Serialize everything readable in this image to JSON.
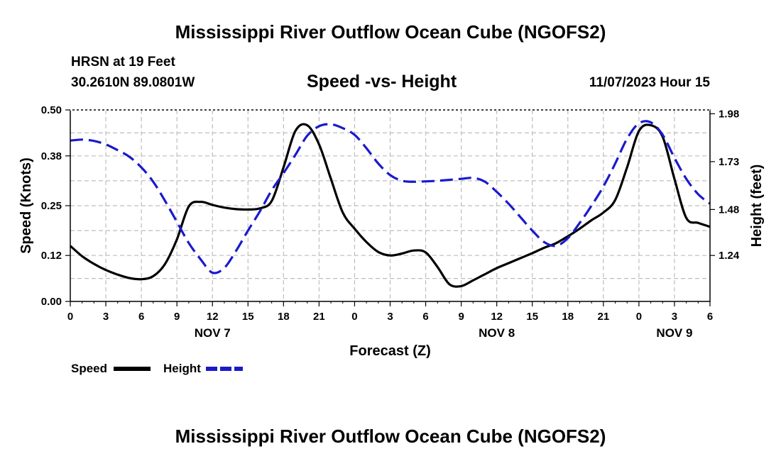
{
  "header": {
    "title": "Mississippi River Outflow Ocean Cube (NGOFS2)",
    "station": "HRSN at 19 Feet",
    "coords": "30.2610N  89.0801W",
    "subtitle": "Speed -vs- Height",
    "datetime": "11/07/2023 Hour 15"
  },
  "footer": {
    "title": "Mississippi River Outflow Ocean Cube (NGOFS2)"
  },
  "chart_data": {
    "type": "line",
    "title": "Speed -vs- Height",
    "xlabel": "Forecast (Z)",
    "ylabel": "Speed (Knots)",
    "y2label": "Height (feet)",
    "xlim": [
      0,
      54
    ],
    "ylim": [
      0,
      0.5
    ],
    "y2lim": [
      1.0,
      2.0
    ],
    "x_ticks": [
      0,
      3,
      6,
      9,
      12,
      15,
      18,
      21,
      24,
      27,
      30,
      33,
      36,
      39,
      42,
      45,
      48,
      51,
      54
    ],
    "x_tick_labels": [
      "0",
      "3",
      "6",
      "9",
      "12",
      "15",
      "18",
      "21",
      "0",
      "3",
      "6",
      "9",
      "12",
      "15",
      "18",
      "21",
      "0",
      "3",
      "6"
    ],
    "y_ticks": [
      0.0,
      0.12,
      0.25,
      0.38,
      0.5
    ],
    "y_tick_labels": [
      "0.00",
      "0.12",
      "0.25",
      "0.38",
      "0.50"
    ],
    "y2_ticks": [
      1.24,
      1.48,
      1.73,
      1.98
    ],
    "y2_tick_labels": [
      "1.24",
      "1.48",
      "1.73",
      "1.98"
    ],
    "day_labels": [
      {
        "x": 12,
        "label": "NOV 7"
      },
      {
        "x": 36,
        "label": "NOV 8"
      },
      {
        "x": 51,
        "label": "NOV 9"
      }
    ],
    "grid": true,
    "legend": [
      {
        "name": "Speed",
        "color": "#000000",
        "style": "solid"
      },
      {
        "name": "Height",
        "color": "#1a1acc",
        "style": "dashed"
      }
    ],
    "series": [
      {
        "name": "Speed",
        "axis": "left",
        "color": "#000000",
        "x": [
          0,
          1,
          2,
          3,
          4,
          5,
          6,
          7,
          8,
          9,
          10,
          11,
          12,
          13,
          14,
          15,
          16,
          17,
          18,
          19,
          20,
          21,
          22,
          23,
          24,
          25,
          26,
          27,
          28,
          29,
          30,
          31,
          32,
          33,
          34,
          35,
          36,
          37,
          38,
          39,
          40,
          41,
          42,
          43,
          44,
          45,
          46,
          47,
          48,
          49,
          50,
          51,
          52,
          53,
          54
        ],
        "values": [
          0.145,
          0.118,
          0.098,
          0.082,
          0.07,
          0.061,
          0.058,
          0.066,
          0.098,
          0.162,
          0.248,
          0.26,
          0.252,
          0.245,
          0.241,
          0.24,
          0.243,
          0.262,
          0.35,
          0.445,
          0.46,
          0.41,
          0.32,
          0.232,
          0.19,
          0.155,
          0.129,
          0.12,
          0.125,
          0.133,
          0.128,
          0.09,
          0.045,
          0.04,
          0.055,
          0.071,
          0.087,
          0.1,
          0.113,
          0.126,
          0.14,
          0.152,
          0.17,
          0.19,
          0.212,
          0.232,
          0.265,
          0.35,
          0.445,
          0.46,
          0.43,
          0.32,
          0.218,
          0.205,
          0.195
        ]
      },
      {
        "name": "Height",
        "axis": "right",
        "color": "#1a1acc",
        "x": [
          0,
          1,
          2,
          3,
          4,
          5,
          6,
          7,
          8,
          9,
          10,
          11,
          12,
          13,
          14,
          15,
          16,
          17,
          18,
          19,
          20,
          21,
          22,
          23,
          24,
          25,
          26,
          27,
          28,
          29,
          30,
          31,
          32,
          33,
          34,
          35,
          36,
          37,
          38,
          39,
          40,
          41,
          42,
          43,
          44,
          45,
          46,
          47,
          48,
          49,
          50,
          51,
          52,
          53,
          54
        ],
        "values": [
          1.84,
          1.845,
          1.838,
          1.82,
          1.79,
          1.755,
          1.7,
          1.625,
          1.525,
          1.415,
          1.305,
          1.22,
          1.15,
          1.175,
          1.265,
          1.37,
          1.47,
          1.58,
          1.67,
          1.765,
          1.865,
          1.915,
          1.925,
          1.905,
          1.87,
          1.8,
          1.72,
          1.66,
          1.63,
          1.625,
          1.627,
          1.63,
          1.635,
          1.64,
          1.645,
          1.625,
          1.572,
          1.51,
          1.44,
          1.37,
          1.31,
          1.29,
          1.33,
          1.41,
          1.5,
          1.6,
          1.72,
          1.85,
          1.93,
          1.935,
          1.87,
          1.75,
          1.64,
          1.56,
          1.51
        ]
      }
    ]
  }
}
